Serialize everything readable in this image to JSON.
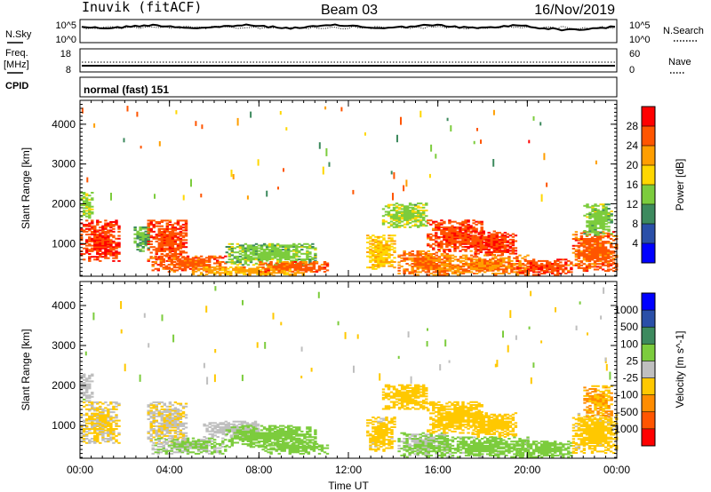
{
  "header": {
    "station": "Inuvik (fitACF)",
    "beam": "Beam 03",
    "date": "16/Nov/2019"
  },
  "nsky": {
    "label": "N.Sky",
    "tick_top": "10^5",
    "tick_bottom": "10^0",
    "right_label": "N.Search",
    "right_tick_top": "10^5",
    "right_tick_bottom": "10^0"
  },
  "freq": {
    "label_line1": "Freq.",
    "label_line2": "[MHz]",
    "tick_top": "18",
    "tick_bottom": "8",
    "right_label": "Nave",
    "right_tick_top": "60",
    "right_tick_bottom": "0"
  },
  "cpid": {
    "label": "CPID",
    "value": "normal (fast) 151"
  },
  "colors": {
    "axis": "#000000",
    "scatter": "#6e8a6e",
    "ground_scatter": "#bfbfbf"
  },
  "chart_data": [
    {
      "type": "heatmap",
      "xlabel": "Time UT",
      "ylabel": "Slant Range [km]",
      "xticks": [
        "00:00",
        "04:00",
        "08:00",
        "12:00",
        "16:00",
        "20:00",
        "00:00"
      ],
      "xlim_hours": [
        0,
        24
      ],
      "yticks": [
        "1000",
        "2000",
        "3000",
        "4000"
      ],
      "ylim": [
        180,
        4600
      ],
      "colorbar": {
        "label": "Power [dB]",
        "ticks": [
          "28",
          "24",
          "20",
          "16",
          "12",
          "8",
          "4"
        ],
        "range": [
          0,
          30
        ],
        "colors": [
          "#0000ff",
          "#2a4fa8",
          "#3d8a5e",
          "#7ccc3d",
          "#ffd700",
          "#ff9e00",
          "#ff5500",
          "#ff0000"
        ]
      },
      "scatter_regions": [
        {
          "t0": 0.0,
          "t1": 1.8,
          "r0": 550,
          "r1": 1600,
          "power": 26
        },
        {
          "t0": 0.0,
          "t1": 0.5,
          "r0": 1600,
          "r1": 2300,
          "power": 14
        },
        {
          "t0": 2.4,
          "t1": 3.1,
          "r0": 800,
          "r1": 1400,
          "power": 12
        },
        {
          "t0": 3.0,
          "t1": 4.8,
          "r0": 550,
          "r1": 1600,
          "power": 25
        },
        {
          "t0": 3.2,
          "t1": 6.5,
          "r0": 280,
          "r1": 700,
          "power": 24
        },
        {
          "t0": 5.0,
          "t1": 10.0,
          "r0": 180,
          "r1": 400,
          "power": 20
        },
        {
          "t0": 6.5,
          "t1": 10.5,
          "r0": 450,
          "r1": 1000,
          "power": 13
        },
        {
          "t0": 8.0,
          "t1": 11.0,
          "r0": 280,
          "r1": 550,
          "power": 24
        },
        {
          "t0": 12.8,
          "t1": 14.0,
          "r0": 350,
          "r1": 1200,
          "power": 18
        },
        {
          "t0": 13.5,
          "t1": 15.5,
          "r0": 1400,
          "r1": 2000,
          "power": 14
        },
        {
          "t0": 14.2,
          "t1": 16.5,
          "r0": 200,
          "r1": 800,
          "power": 23
        },
        {
          "t0": 15.5,
          "t1": 18.0,
          "r0": 800,
          "r1": 1600,
          "power": 25
        },
        {
          "t0": 17.5,
          "t1": 19.5,
          "r0": 700,
          "r1": 1300,
          "power": 26
        },
        {
          "t0": 16.0,
          "t1": 20.0,
          "r0": 200,
          "r1": 700,
          "power": 22
        },
        {
          "t0": 19.5,
          "t1": 22.0,
          "r0": 200,
          "r1": 600,
          "power": 25
        },
        {
          "t0": 22.0,
          "t1": 24.0,
          "r0": 300,
          "r1": 1300,
          "power": 24
        },
        {
          "t0": 22.5,
          "t1": 23.8,
          "r0": 1200,
          "r1": 2000,
          "power": 13
        }
      ]
    },
    {
      "type": "heatmap",
      "xlabel": "Time UT",
      "ylabel": "Slant Range [km]",
      "xticks": [
        "00:00",
        "04:00",
        "08:00",
        "12:00",
        "16:00",
        "20:00",
        "00:00"
      ],
      "xlim_hours": [
        0,
        24
      ],
      "yticks": [
        "1000",
        "2000",
        "3000",
        "4000"
      ],
      "ylim": [
        180,
        4600
      ],
      "colorbar": {
        "label": "Velocity [m s^-1]",
        "ticks": [
          "1000",
          "500",
          "100",
          "25",
          "-25",
          "-100",
          "-500",
          "-1000"
        ],
        "range": [
          -1200,
          1200
        ],
        "colors": [
          "#ff0000",
          "#ff5500",
          "#ff8c00",
          "#ffc800",
          "#bfbfbf",
          "#7ccc3d",
          "#3d8a5e",
          "#2a4fa8",
          "#0000ff"
        ]
      },
      "scatter_regions": [
        {
          "t0": 0.0,
          "t1": 1.8,
          "r0": 550,
          "r1": 1600,
          "velocity": -150
        },
        {
          "t0": 0.0,
          "t1": 0.5,
          "r0": 1600,
          "r1": 2300,
          "velocity": 60
        },
        {
          "t0": 3.0,
          "t1": 4.8,
          "r0": 550,
          "r1": 1600,
          "velocity": -120
        },
        {
          "t0": 3.2,
          "t1": 6.5,
          "r0": 280,
          "r1": 700,
          "velocity": 150
        },
        {
          "t0": 5.5,
          "t1": 8.0,
          "r0": 700,
          "r1": 1100,
          "velocity": 0
        },
        {
          "t0": 6.5,
          "t1": 10.5,
          "r0": 450,
          "r1": 1000,
          "velocity": 250
        },
        {
          "t0": 8.0,
          "t1": 11.0,
          "r0": 280,
          "r1": 550,
          "velocity": 250
        },
        {
          "t0": 12.8,
          "t1": 14.0,
          "r0": 350,
          "r1": 1200,
          "velocity": -200
        },
        {
          "t0": 13.5,
          "t1": 15.5,
          "r0": 1400,
          "r1": 2000,
          "velocity": -300
        },
        {
          "t0": 14.2,
          "t1": 16.5,
          "r0": 200,
          "r1": 800,
          "velocity": 150
        },
        {
          "t0": 15.5,
          "t1": 18.0,
          "r0": 800,
          "r1": 1600,
          "velocity": -300
        },
        {
          "t0": 17.5,
          "t1": 19.5,
          "r0": 700,
          "r1": 1300,
          "velocity": -250
        },
        {
          "t0": 16.0,
          "t1": 20.0,
          "r0": 200,
          "r1": 700,
          "velocity": 200
        },
        {
          "t0": 19.5,
          "t1": 22.0,
          "r0": 200,
          "r1": 600,
          "velocity": 300
        },
        {
          "t0": 22.0,
          "t1": 24.0,
          "r0": 300,
          "r1": 1300,
          "velocity": -200
        },
        {
          "t0": 22.5,
          "t1": 23.8,
          "r0": 1200,
          "r1": 2000,
          "velocity": -400
        }
      ]
    }
  ]
}
